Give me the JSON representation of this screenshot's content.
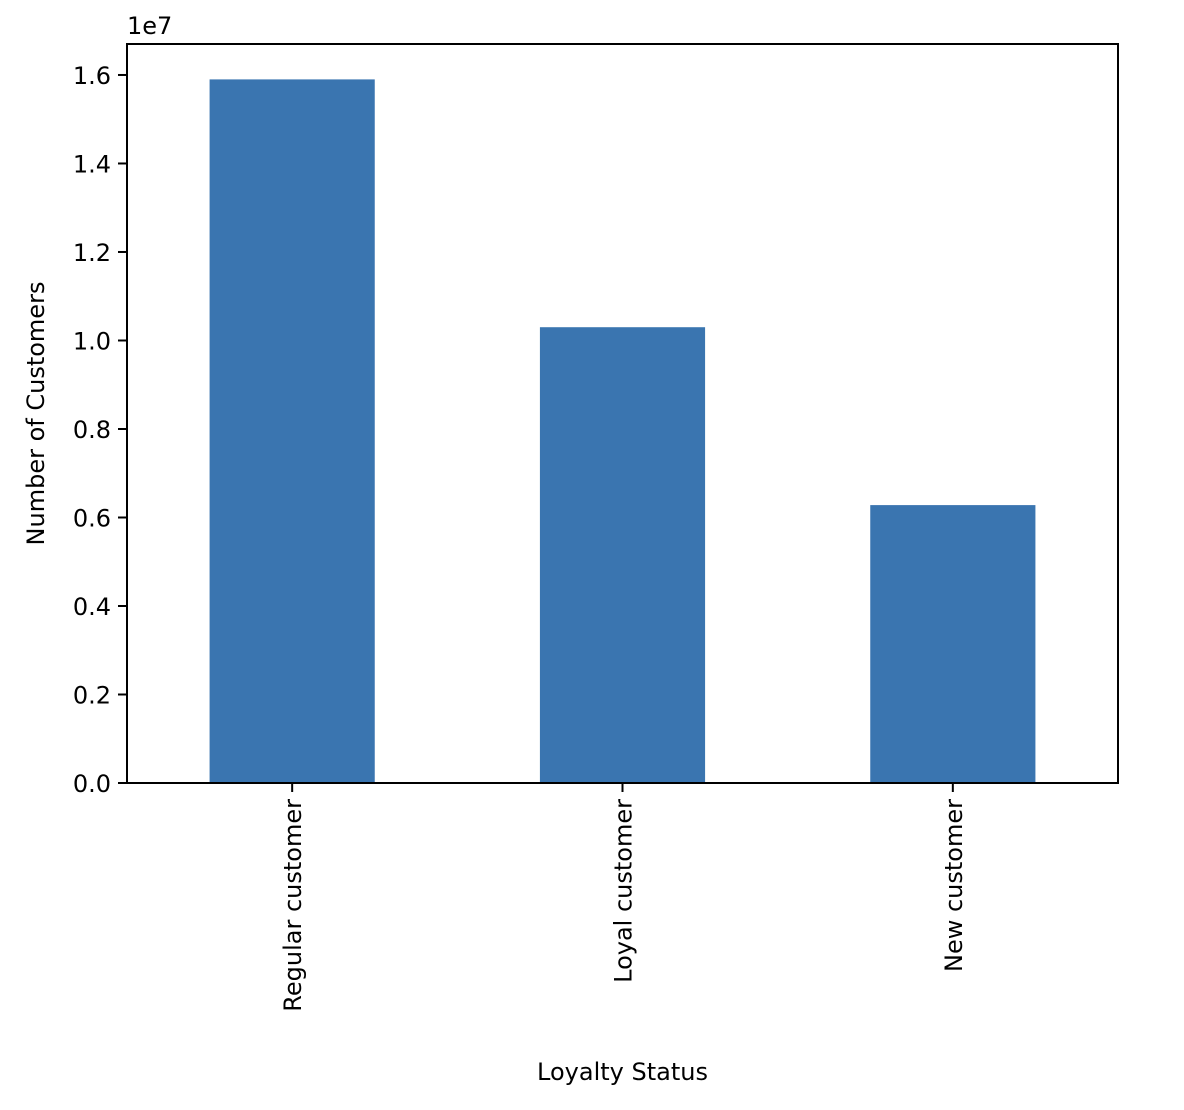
{
  "chart_data": {
    "type": "bar",
    "categories": [
      "Regular customer",
      "Loyal customer",
      "New customer"
    ],
    "values": [
      15900000,
      10300000,
      6280000
    ],
    "title": "",
    "xlabel": "Loyalty Status",
    "ylabel": "Number of Customers",
    "ylim": [
      0,
      16700000
    ],
    "y_ticks": [
      0,
      2000000,
      4000000,
      6000000,
      8000000,
      10000000,
      12000000,
      14000000,
      16000000
    ],
    "y_tick_labels": [
      "0.0",
      "0.2",
      "0.4",
      "0.6",
      "0.8",
      "1.0",
      "1.2",
      "1.4",
      "1.6"
    ],
    "y_offset_label": "1e7",
    "bar_color": "#3a75b0",
    "grid": false,
    "legend": "none"
  }
}
